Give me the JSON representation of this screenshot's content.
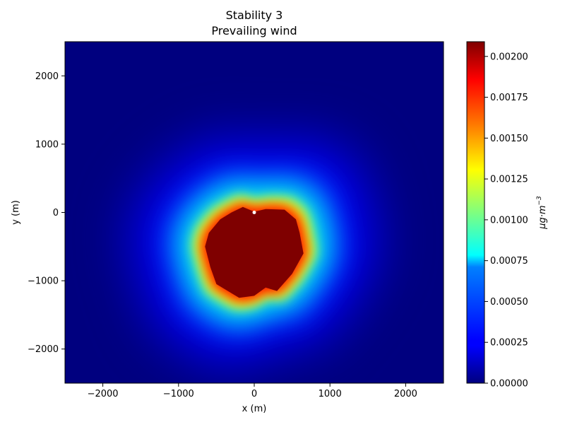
{
  "chart_data": {
    "type": "heatmap",
    "title": "Stability 3",
    "subtitle": "Prevailing wind",
    "xlabel": "x (m)",
    "ylabel": "y (m)",
    "xlim": [
      -2500,
      2500
    ],
    "ylim": [
      -2500,
      2500
    ],
    "x_ticks": [
      -2000,
      -1000,
      0,
      1000,
      2000
    ],
    "y_ticks": [
      -2000,
      -1000,
      0,
      1000,
      2000
    ],
    "colormap": "jet",
    "colorbar": {
      "label_base": "μg·m",
      "label_exponent": "−3",
      "range": [
        0,
        0.00209
      ],
      "ticks": [
        "0.00000",
        "0.00025",
        "0.00050",
        "0.00075",
        "0.00100",
        "0.00125",
        "0.00150",
        "0.00175",
        "0.00200"
      ],
      "tick_values": [
        0,
        0.00025,
        0.0005,
        0.00075,
        0.001,
        0.00125,
        0.0015,
        0.00175,
        0.002
      ]
    },
    "source_xy": [
      0,
      0
    ],
    "saturated_core_polygon": [
      [
        -600,
        -300
      ],
      [
        -450,
        -100
      ],
      [
        -300,
        0
      ],
      [
        -150,
        80
      ],
      [
        0,
        10
      ],
      [
        150,
        50
      ],
      [
        400,
        40
      ],
      [
        550,
        -100
      ],
      [
        600,
        -300
      ],
      [
        650,
        -600
      ],
      [
        500,
        -900
      ],
      [
        300,
        -1150
      ],
      [
        150,
        -1100
      ],
      [
        0,
        -1220
      ],
      [
        -200,
        -1250
      ],
      [
        -500,
        -1050
      ],
      [
        -580,
        -800
      ],
      [
        -650,
        -500
      ]
    ],
    "grid": false,
    "legend": "colorbar-right"
  }
}
